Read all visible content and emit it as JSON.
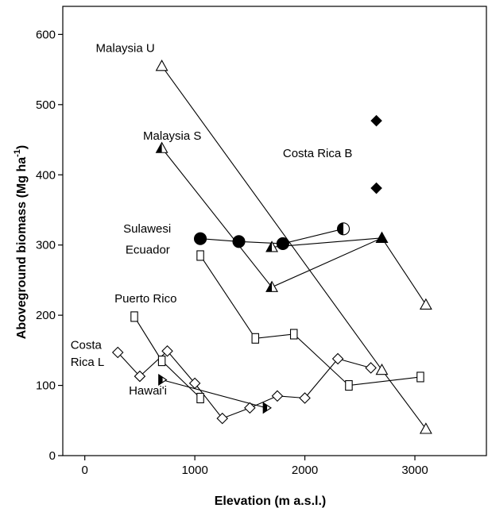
{
  "chart_data": {
    "type": "scatter",
    "title": "",
    "xlabel": "Elevation (m a.s.l.)",
    "ylabel_main": "Aboveground biomass (Mg ha",
    "ylabel_sup": "-1",
    "ylabel_close": ")",
    "xlim": [
      -200,
      3650
    ],
    "ylim": [
      0,
      640
    ],
    "xticks": [
      0,
      1000,
      2000,
      3000
    ],
    "yticks": [
      0,
      100,
      200,
      300,
      400,
      500,
      600
    ],
    "grid": false,
    "legend": "none",
    "annotations": [
      {
        "text": "Malaysia U",
        "x": 100,
        "y": 575
      },
      {
        "text": "Malaysia S",
        "x": 530,
        "y": 450
      },
      {
        "text": "Costa Rica B",
        "x": 1800,
        "y": 425
      },
      {
        "text": "Sulawesi",
        "x": 350,
        "y": 318
      },
      {
        "text": "Ecuador",
        "x": 370,
        "y": 288
      },
      {
        "text": "Puerto Rico",
        "x": 270,
        "y": 218
      },
      {
        "text": "Costa",
        "x": -130,
        "y": 152
      },
      {
        "text": "Rica L",
        "x": -130,
        "y": 128
      },
      {
        "text": "Hawai'i",
        "x": 400,
        "y": 87
      }
    ],
    "series": [
      {
        "marker": "triangle-open",
        "connected": true,
        "x": [
          700,
          2700,
          3100
        ],
        "y": [
          555,
          122,
          38
        ]
      },
      {
        "marker": "triangle-half",
        "connected": true,
        "x": [
          700,
          1700,
          2700,
          3100
        ],
        "y": [
          438,
          240,
          310,
          215
        ],
        "fills": [
          "half",
          "half",
          "full",
          "open"
        ]
      },
      {
        "marker": "triangle-half",
        "connected": true,
        "x": [
          1700,
          2700
        ],
        "y": [
          297,
          310
        ],
        "fills": [
          "half",
          "full"
        ]
      },
      {
        "marker": "circle",
        "connected": true,
        "x": [
          1050,
          1400,
          1800,
          2350
        ],
        "y": [
          309,
          305,
          302,
          323
        ],
        "fills": [
          "full",
          "full",
          "full",
          "half"
        ]
      },
      {
        "marker": "square-open",
        "connected": true,
        "x": [
          1050,
          1550,
          1900,
          2400,
          3050
        ],
        "y": [
          285,
          167,
          173,
          100,
          112
        ]
      },
      {
        "marker": "square-open",
        "connected": true,
        "x": [
          450,
          700,
          1050
        ],
        "y": [
          198,
          135,
          82
        ]
      },
      {
        "marker": "diamond-open",
        "connected": true,
        "x": [
          300,
          500,
          750,
          1000,
          1250,
          1500,
          1750,
          2000,
          2300,
          2600
        ],
        "y": [
          147,
          113,
          149,
          103,
          53,
          68,
          85,
          82,
          138,
          125
        ]
      },
      {
        "marker": "triangle-right-half",
        "connected": true,
        "x": [
          700,
          1650
        ],
        "y": [
          108,
          68
        ]
      },
      {
        "marker": "diamond-filled",
        "connected": false,
        "x": [
          2650,
          2650
        ],
        "y": [
          477,
          381
        ]
      }
    ]
  }
}
